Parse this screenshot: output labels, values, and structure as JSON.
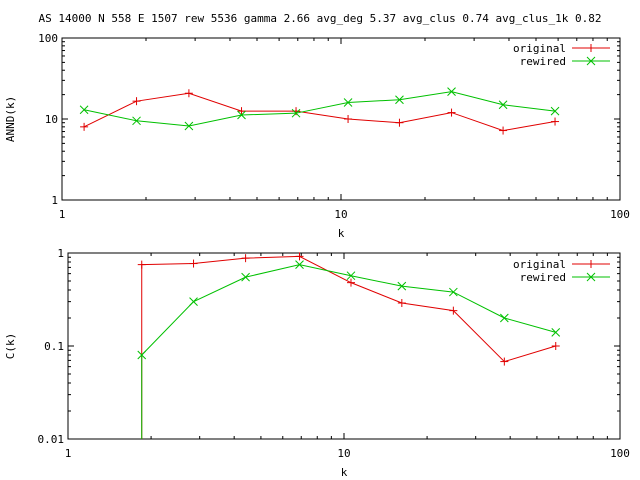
{
  "title": "AS 14000 N 558 E 1507 rew 5536 gamma 2.66 avg_deg 5.37 avg_clus 0.74 avg_clus_1k 0.82",
  "colors": {
    "original": "#e00000",
    "rewired": "#00c000",
    "axis": "#000000"
  },
  "chart_data": [
    {
      "type": "line",
      "xlabel": "k",
      "ylabel": "ANND(k)",
      "xscale": "log",
      "yscale": "log",
      "xlim": [
        1,
        100
      ],
      "ylim": [
        1,
        100
      ],
      "xticks": [
        1,
        10,
        100
      ],
      "xtick_labels": [
        "1",
        "10",
        "100"
      ],
      "yticks": [
        1,
        10,
        100
      ],
      "ytick_labels": [
        "1",
        "10",
        "100"
      ],
      "legend": "top-right",
      "series": [
        {
          "name": "original",
          "marker": "plus",
          "x": [
            1.2,
            1.85,
            2.85,
            4.4,
            6.9,
            10.6,
            16.2,
            24.9,
            38.1,
            58.5
          ],
          "y": [
            8.0,
            16.6,
            20.8,
            12.5,
            12.5,
            10.0,
            9.0,
            12.0,
            7.2,
            9.3
          ]
        },
        {
          "name": "rewired",
          "marker": "x",
          "x": [
            1.2,
            1.85,
            2.85,
            4.4,
            6.9,
            10.6,
            16.2,
            24.9,
            38.1,
            58.5
          ],
          "y": [
            13.0,
            9.5,
            8.2,
            11.2,
            11.8,
            16.0,
            17.3,
            21.8,
            15.0,
            12.5
          ]
        }
      ]
    },
    {
      "type": "line",
      "xlabel": "k",
      "ylabel": "C(k)",
      "xscale": "log",
      "yscale": "log",
      "xlim": [
        1,
        100
      ],
      "ylim": [
        0.01,
        1
      ],
      "xticks": [
        1,
        10,
        100
      ],
      "xtick_labels": [
        "1",
        "10",
        "100"
      ],
      "yticks": [
        0.01,
        0.1,
        1
      ],
      "ytick_labels": [
        "0.01",
        "0.1",
        "1"
      ],
      "legend": "top-right",
      "series": [
        {
          "name": "original",
          "marker": "plus",
          "x": [
            1.85,
            2.85,
            4.4,
            6.9,
            10.6,
            16.2,
            24.9,
            38.1,
            58.5
          ],
          "y": [
            0.75,
            0.77,
            0.88,
            0.92,
            0.48,
            0.29,
            0.24,
            0.068,
            0.1
          ]
        },
        {
          "name": "rewired",
          "marker": "x",
          "x": [
            1.85,
            2.85,
            4.4,
            6.9,
            10.6,
            16.2,
            24.9,
            38.1,
            58.5
          ],
          "y": [
            0.08,
            0.3,
            0.55,
            0.75,
            0.57,
            0.44,
            0.38,
            0.2,
            0.14
          ],
          "drop_to_bottom_at_first": true
        }
      ]
    }
  ]
}
